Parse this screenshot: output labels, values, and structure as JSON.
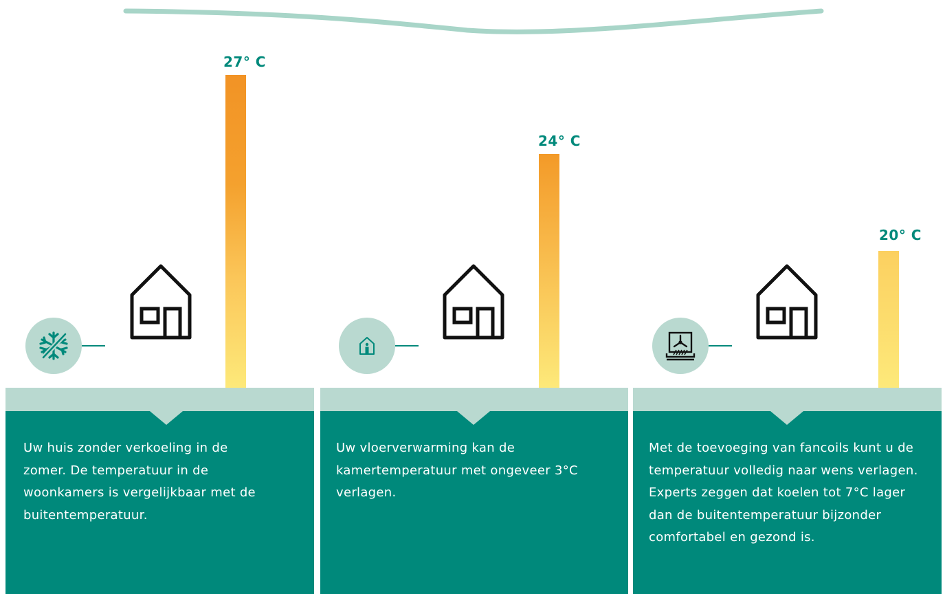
{
  "colors": {
    "teal": "#00897b",
    "light_teal": "#b9d9d0",
    "wave": "#a8d5c8",
    "bar_top": "#f29325",
    "bar_bottom": "#fde97a"
  },
  "panels": [
    {
      "temperature": "27° C",
      "temperature_value": 27,
      "icon": "snowflake-crossed-icon",
      "text": "Uw huis zonder verkoeling in de zomer. De temperatuur in de woonkamers is vergelijkbaar met de buitentemperatuur."
    },
    {
      "temperature": "24° C",
      "temperature_value": 24,
      "icon": "person-in-house-icon",
      "text": "Uw vloerverwarming kan de kamertemperatuur met ongeveer 3°C verlagen."
    },
    {
      "temperature": "20° C",
      "temperature_value": 20,
      "icon": "fancoil-icon",
      "text": "Met de toevoeging van fancoils kunt u de temperatuur volledig naar wens verlagen. Experts zeggen dat koelen tot 7°C lager dan de buitentemperatuur bijzonder comfortabel en gezond is."
    }
  ]
}
